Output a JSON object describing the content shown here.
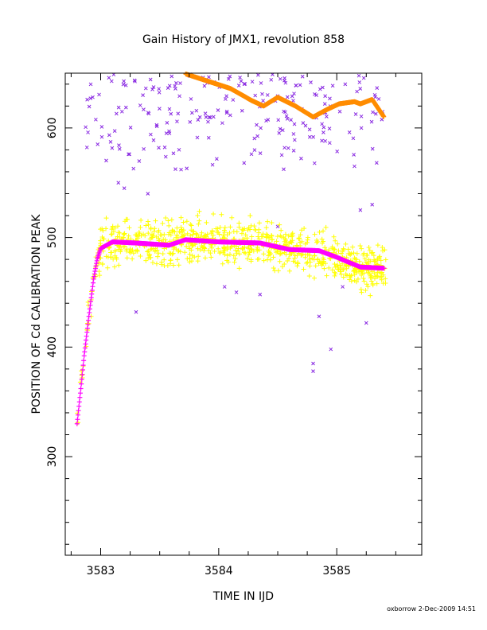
{
  "chart_data": {
    "type": "scatter",
    "title": "Gain History of JMX1, revolution 858",
    "xlabel": "TIME IN IJD",
    "ylabel": "POSITION OF Cd CALIBRATION PEAK",
    "xlim": [
      3582.7,
      3585.72
    ],
    "ylim": [
      210,
      650
    ],
    "x_ticks": [
      3583,
      3584,
      3585
    ],
    "x_tick_labels": [
      "3583",
      "3584",
      "3585"
    ],
    "y_ticks": [
      300,
      400,
      500,
      600
    ],
    "y_tick_labels": [
      "300",
      "400",
      "500",
      "600"
    ],
    "grid": false,
    "footer": "oxborrow   2-Dec-2009 14:51",
    "colors": {
      "upper_scatter": "#8a2be2",
      "lower_scatter": "#ffff00",
      "lower_fit": "#ff00ff",
      "upper_fit": "#ff8c00"
    },
    "series": [
      {
        "marker": "x",
        "role": "upper_scatter",
        "color": "#8a2be2",
        "x_range": [
          3582.85,
          3585.4
        ],
        "y_band": [
          560,
          650
        ],
        "outliers": [
          [
            3583.15,
            550
          ],
          [
            3583.2,
            545
          ],
          [
            3583.4,
            540
          ],
          [
            3583.3,
            432
          ],
          [
            3584.05,
            455
          ],
          [
            3584.15,
            450
          ],
          [
            3584.35,
            448
          ],
          [
            3584.85,
            428
          ],
          [
            3584.8,
            385
          ],
          [
            3584.8,
            378
          ],
          [
            3584.95,
            398
          ],
          [
            3585.05,
            455
          ],
          [
            3585.25,
            422
          ],
          [
            3585.2,
            525
          ],
          [
            3585.15,
            565
          ],
          [
            3584.5,
            510
          ],
          [
            3585.3,
            530
          ]
        ]
      },
      {
        "marker": "+",
        "role": "lower_scatter",
        "color": "#ffff00",
        "x_range": [
          3582.8,
          3585.42
        ],
        "y_band": [
          455,
          525
        ]
      },
      {
        "marker": "+",
        "role": "lower_fit",
        "color": "#ff00ff",
        "x": [
          3582.8,
          3582.83,
          3582.86,
          3582.9,
          3582.94,
          3582.97,
          3583.0,
          3583.05,
          3583.1,
          3583.3,
          3583.58,
          3583.72,
          3584.0,
          3584.35,
          3584.6,
          3584.85,
          3585.0,
          3585.2,
          3585.4
        ],
        "y": [
          330,
          360,
          392,
          428,
          462,
          480,
          490,
          493,
          496,
          495,
          493,
          498,
          496,
          495,
          489,
          488,
          482,
          473,
          472
        ]
      },
      {
        "marker": "+",
        "role": "upper_fit",
        "color": "#ff8c00",
        "x": [
          3583.7,
          3583.9,
          3584.1,
          3584.28,
          3584.38,
          3584.5,
          3584.65,
          3584.8,
          3584.92,
          3585.02,
          3585.15,
          3585.2,
          3585.3,
          3585.4
        ],
        "y": [
          650,
          643,
          636,
          625,
          620,
          628,
          620,
          610,
          617,
          622,
          624,
          622,
          626,
          610
        ]
      }
    ]
  }
}
